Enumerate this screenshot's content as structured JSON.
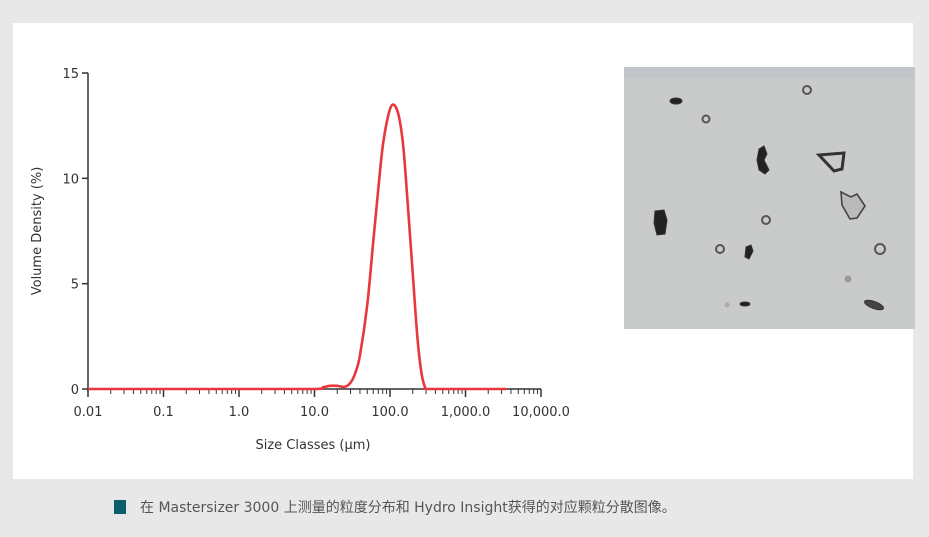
{
  "chart_data": {
    "type": "line",
    "title": "",
    "xlabel": "Size Classes (µm)",
    "ylabel": "Volume Density (%)",
    "x_scale": "log",
    "xlim": [
      0.01,
      10000
    ],
    "ylim": [
      0,
      15
    ],
    "x_ticks": [
      "0.01",
      "0.1",
      "1.0",
      "10.0",
      "100.0",
      "1,000.0",
      "10,000.0"
    ],
    "y_ticks": [
      "0",
      "5",
      "10",
      "15"
    ],
    "grid": false,
    "line_color": "#e8383d",
    "series": [
      {
        "x": [
          0.01,
          1,
          10,
          13,
          16,
          20,
          25,
          30,
          35,
          40,
          50,
          60,
          70,
          80,
          95,
          110,
          130,
          150,
          170,
          200,
          230,
          260,
          290,
          320,
          1000,
          3500
        ],
        "y": [
          0,
          0,
          0,
          0.08,
          0.15,
          0.15,
          0.1,
          0.3,
          0.8,
          1.6,
          4.0,
          7.0,
          9.5,
          11.5,
          13.0,
          13.5,
          13.0,
          11.5,
          9.0,
          5.5,
          2.5,
          0.8,
          0.1,
          0,
          0,
          0
        ]
      }
    ]
  },
  "caption": {
    "text": "在 Mastersizer 3000 上测量的粒度分布和 Hydro Insight获得的对应颗粒分散图像。",
    "marker_color": "#0e5f6e"
  }
}
